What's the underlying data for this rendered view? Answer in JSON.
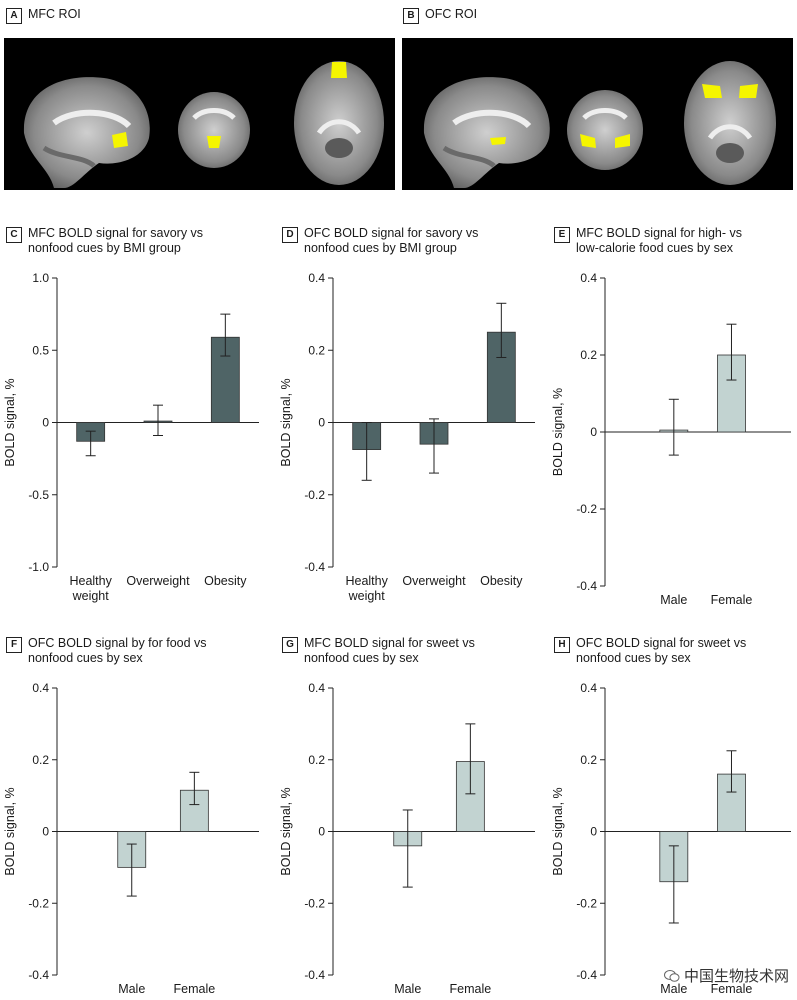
{
  "panels_top": [
    {
      "letter": "A",
      "title": "MFC ROI"
    },
    {
      "letter": "B",
      "title": "OFC ROI"
    }
  ],
  "roi_color": "#f5f500",
  "bar_colors": {
    "dark": "#4f6466",
    "light": "#c2d3d1"
  },
  "watermark": "中国生物技术网",
  "chart_data": [
    {
      "letter": "C",
      "type": "bar",
      "title": "MFC BOLD signal for savory vs\nnonfood cues by BMI group",
      "ylabel": "BOLD signal, %",
      "ylim": [
        -1.0,
        1.0
      ],
      "yticks": [
        "1.0",
        "0.5",
        "0",
        "-0.5",
        "-1.0"
      ],
      "ytick_values": [
        1.0,
        0.5,
        0,
        -0.5,
        -1.0
      ],
      "categories": [
        "Healthy\nweight",
        "Overweight",
        "Obesity"
      ],
      "values": [
        -0.13,
        0.01,
        0.59
      ],
      "err_low": [
        -0.23,
        -0.09,
        0.46
      ],
      "err_high": [
        -0.06,
        0.12,
        0.75
      ],
      "color": "dark"
    },
    {
      "letter": "D",
      "type": "bar",
      "title": "OFC BOLD signal for savory vs\nnonfood cues by BMI group",
      "ylabel": "BOLD signal, %",
      "ylim": [
        -0.4,
        0.4
      ],
      "yticks": [
        "0.4",
        "0.2",
        "0",
        "-0.2",
        "-0.4"
      ],
      "ytick_values": [
        0.4,
        0.2,
        0,
        -0.2,
        -0.4
      ],
      "categories": [
        "Healthy\nweight",
        "Overweight",
        "Obesity"
      ],
      "values": [
        -0.075,
        -0.06,
        0.25
      ],
      "err_low": [
        -0.16,
        -0.14,
        0.18
      ],
      "err_high": [
        0.0,
        0.01,
        0.33
      ],
      "color": "dark"
    },
    {
      "letter": "E",
      "type": "bar",
      "title": "MFC BOLD signal for high- vs\nlow-calorie food cues by sex",
      "ylabel": "BOLD signal, %",
      "ylim": [
        -0.4,
        0.4
      ],
      "yticks": [
        "0.4",
        "0.2",
        "0",
        "-0.2",
        "-0.4"
      ],
      "ytick_values": [
        0.4,
        0.2,
        0,
        -0.2,
        -0.4
      ],
      "categories": [
        "Male",
        "Female"
      ],
      "values": [
        0.005,
        0.2
      ],
      "err_low": [
        -0.06,
        0.135
      ],
      "err_high": [
        0.085,
        0.28
      ],
      "color": "light"
    },
    {
      "letter": "F",
      "type": "bar",
      "title": "OFC BOLD signal by for food vs\nnonfood cues by sex",
      "ylabel": "BOLD signal, %",
      "ylim": [
        -0.4,
        0.4
      ],
      "yticks": [
        "0.4",
        "0.2",
        "0",
        "-0.2",
        "-0.4"
      ],
      "ytick_values": [
        0.4,
        0.2,
        0,
        -0.2,
        -0.4
      ],
      "categories": [
        "Male",
        "Female"
      ],
      "values": [
        -0.1,
        0.115
      ],
      "err_low": [
        -0.18,
        0.075
      ],
      "err_high": [
        -0.035,
        0.165
      ],
      "color": "light"
    },
    {
      "letter": "G",
      "type": "bar",
      "title": "MFC BOLD signal for sweet vs\nnonfood cues by sex",
      "ylabel": "BOLD signal, %",
      "ylim": [
        -0.4,
        0.4
      ],
      "yticks": [
        "0.4",
        "0.2",
        "0",
        "-0.2",
        "-0.4"
      ],
      "ytick_values": [
        0.4,
        0.2,
        0,
        -0.2,
        -0.4
      ],
      "categories": [
        "Male",
        "Female"
      ],
      "values": [
        -0.04,
        0.195
      ],
      "err_low": [
        -0.155,
        0.105
      ],
      "err_high": [
        0.06,
        0.3
      ],
      "color": "light"
    },
    {
      "letter": "H",
      "type": "bar",
      "title": "OFC BOLD signal for sweet vs\nnonfood cues by sex",
      "ylabel": "BOLD signal, %",
      "ylim": [
        -0.4,
        0.4
      ],
      "yticks": [
        "0.4",
        "0.2",
        "0",
        "-0.2",
        "-0.4"
      ],
      "ytick_values": [
        0.4,
        0.2,
        0,
        -0.2,
        -0.4
      ],
      "categories": [
        "Male",
        "Female"
      ],
      "values": [
        -0.14,
        0.16
      ],
      "err_low": [
        -0.255,
        0.11
      ],
      "err_high": [
        -0.04,
        0.225
      ],
      "color": "light"
    }
  ]
}
